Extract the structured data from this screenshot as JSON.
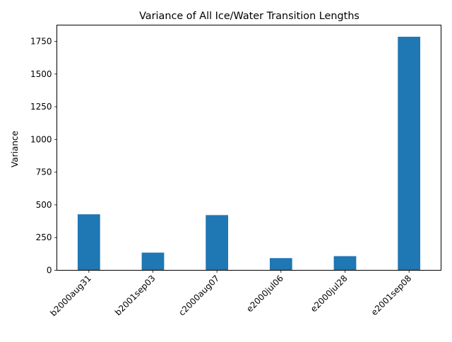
{
  "chart_data": {
    "type": "bar",
    "title": "Variance of All Ice/Water Transition Lengths",
    "xlabel": "",
    "ylabel": "Variance",
    "categories": [
      "b2000aug31",
      "b2001sep03",
      "c2000aug07",
      "e2000jul06",
      "e2000jul28",
      "e2001sep08"
    ],
    "values": [
      428,
      135,
      422,
      93,
      108,
      1785
    ],
    "ylim": [
      0,
      1874.25
    ],
    "yticks": [
      0,
      250,
      500,
      750,
      1000,
      1250,
      1500,
      1750
    ],
    "ytick_labels": [
      "0",
      "250",
      "500",
      "750",
      "1000",
      "1250",
      "1500",
      "1750"
    ],
    "bar_color": "#1f77b4",
    "grid": false,
    "legend": "none",
    "xtick_rotation_deg": 45
  }
}
